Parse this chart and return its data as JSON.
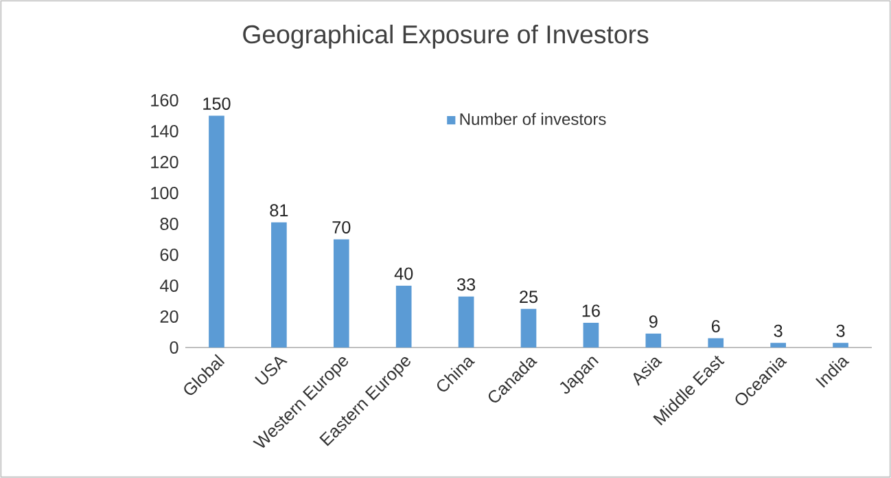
{
  "chart_data": {
    "type": "bar",
    "title": "Geographical Exposure of Investors",
    "categories": [
      "Global",
      "USA",
      "Western Europe",
      "Eastern Europe",
      "China",
      "Canada",
      "Japan",
      "Asia",
      "Middle East",
      "Oceania",
      "India"
    ],
    "series": [
      {
        "name": "Number of investors",
        "color": "#5b9bd5",
        "values": [
          150,
          81,
          70,
          40,
          33,
          25,
          16,
          9,
          6,
          3,
          3
        ]
      }
    ],
    "ylim": [
      0,
      160
    ],
    "yticks": [
      0,
      20,
      40,
      60,
      80,
      100,
      120,
      140,
      160
    ],
    "legend": "top",
    "data_labels": true
  }
}
